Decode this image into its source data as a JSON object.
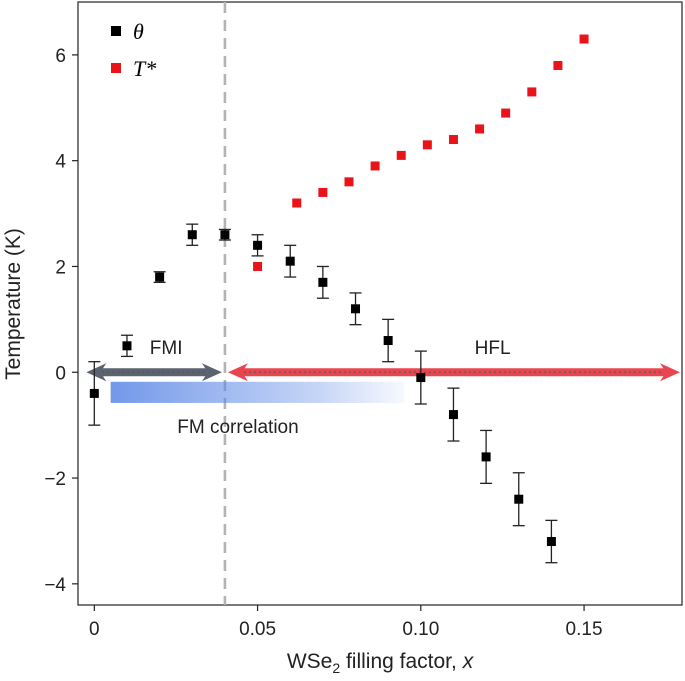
{
  "chart_data": {
    "type": "scatter",
    "xlabel_main": "WSe",
    "xlabel_sub": "2",
    "xlabel_rest": " filling factor, ",
    "xlabel_var": "x",
    "ylabel": "Temperature (K)",
    "xlim": [
      -0.005,
      0.18
    ],
    "ylim": [
      -4.4,
      7.0
    ],
    "x_ticks": [
      0,
      0.05,
      0.1,
      0.15
    ],
    "x_tick_labels": [
      "0",
      "0.05",
      "0.10",
      "0.15"
    ],
    "y_ticks": [
      -4,
      -2,
      0,
      2,
      4,
      6
    ],
    "y_tick_labels": [
      "−4",
      "−2",
      "0",
      "2",
      "4",
      "6"
    ],
    "series": [
      {
        "name": "θ",
        "color": "#000000",
        "marker": "square",
        "x": [
          0,
          0.01,
          0.02,
          0.03,
          0.04,
          0.05,
          0.06,
          0.07,
          0.08,
          0.09,
          0.1,
          0.11,
          0.12,
          0.13,
          0.14
        ],
        "y": [
          -0.4,
          0.5,
          1.8,
          2.6,
          2.6,
          2.4,
          2.1,
          1.7,
          1.2,
          0.6,
          -0.1,
          -0.8,
          -1.6,
          -2.4,
          -3.2
        ],
        "err": [
          0.6,
          0.2,
          0.1,
          0.2,
          0.1,
          0.2,
          0.3,
          0.3,
          0.3,
          0.4,
          0.5,
          0.5,
          0.5,
          0.5,
          0.4
        ]
      },
      {
        "name": "T*",
        "color": "#e8141a",
        "marker": "square",
        "x": [
          0.05,
          0.062,
          0.07,
          0.078,
          0.086,
          0.094,
          0.102,
          0.11,
          0.118,
          0.126,
          0.134,
          0.142,
          0.15
        ],
        "y": [
          2.0,
          3.2,
          3.4,
          3.6,
          3.9,
          4.1,
          4.3,
          4.4,
          4.6,
          4.9,
          5.3,
          5.8,
          6.3
        ]
      }
    ],
    "vline_x": 0.04,
    "annotations": {
      "fmi_label": "FMI",
      "hfl_label": "HFL",
      "fm_label": "FM correlation",
      "fmi_range": [
        0,
        0.04
      ],
      "hfl_range": [
        0.04,
        0.18
      ],
      "fm_range": [
        0.005,
        0.095
      ]
    },
    "colors": {
      "fmi_arrow": "#5b6270",
      "hfl_arrow": "#e8454f",
      "fm_band": "#5a86e6",
      "fm_text": "#88a8ee",
      "vline": "#b3b3b3"
    }
  }
}
